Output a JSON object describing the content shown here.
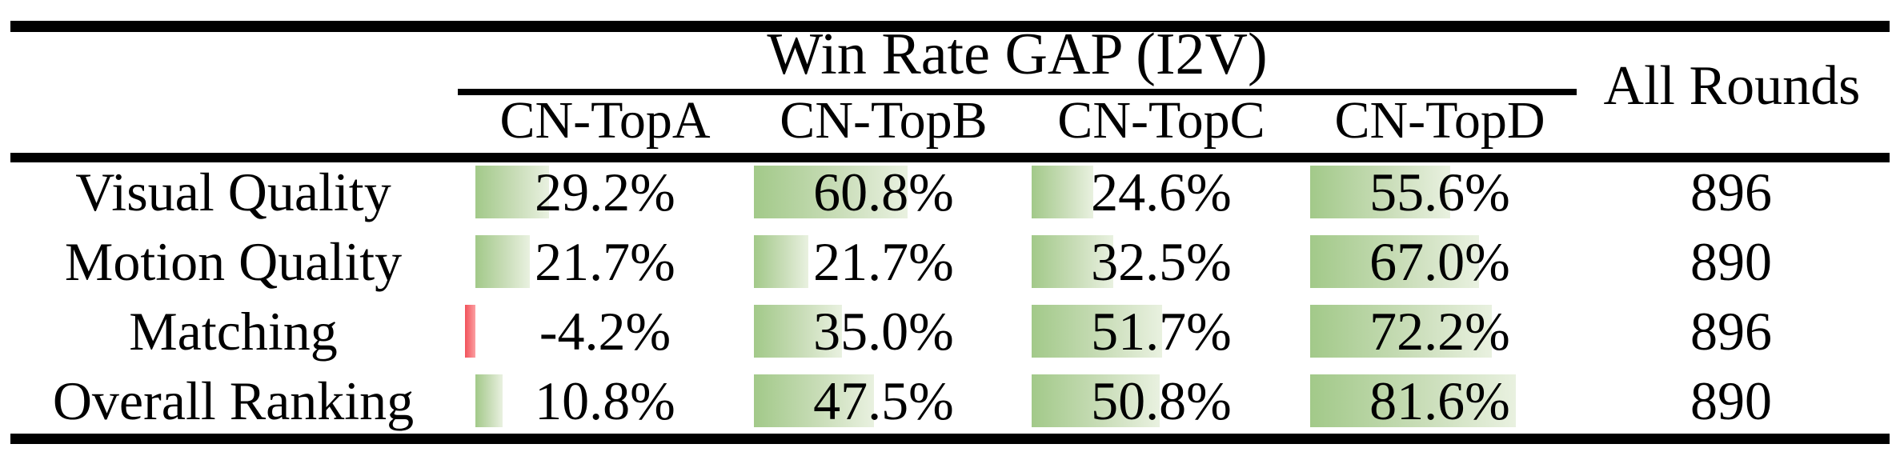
{
  "table": {
    "group_header": "Win Rate GAP (I2V)",
    "all_rounds_header": "All Rounds",
    "columns": [
      "CN-TopA",
      "CN-TopB",
      "CN-TopC",
      "CN-TopD"
    ],
    "rows": [
      {
        "label": "Visual Quality",
        "values": [
          29.2,
          60.8,
          24.6,
          55.6
        ],
        "display": [
          "29.2%",
          "60.8%",
          "24.6%",
          "55.6%"
        ],
        "all_rounds": "896"
      },
      {
        "label": "Motion Quality",
        "values": [
          21.7,
          21.7,
          32.5,
          67.0
        ],
        "display": [
          "21.7%",
          "21.7%",
          "32.5%",
          "67.0%"
        ],
        "all_rounds": "890"
      },
      {
        "label": "Matching",
        "values": [
          -4.2,
          35.0,
          51.7,
          72.2
        ],
        "display": [
          "-4.2%",
          "35.0%",
          "51.7%",
          "72.2%"
        ],
        "all_rounds": "896"
      },
      {
        "label": "Overall Ranking",
        "values": [
          10.8,
          47.5,
          50.8,
          81.6
        ],
        "display": [
          "10.8%",
          "47.5%",
          "50.8%",
          "81.6%"
        ],
        "all_rounds": "890"
      }
    ],
    "colors": {
      "positive_bar_start": "#a2c989",
      "positive_bar_end": "#e9f1e0",
      "negative_bar_start": "#f2525a",
      "negative_bar_end": "#fb9fa2",
      "rule_color": "#000000",
      "text_color": "#000000"
    }
  },
  "chart_data": {
    "type": "table",
    "title": "Win Rate GAP (I2V)",
    "categories": [
      "Visual Quality",
      "Motion Quality",
      "Matching",
      "Overall Ranking"
    ],
    "series": [
      {
        "name": "CN-TopA",
        "values": [
          29.2,
          21.7,
          -4.2,
          10.8
        ]
      },
      {
        "name": "CN-TopB",
        "values": [
          60.8,
          21.7,
          35.0,
          47.5
        ]
      },
      {
        "name": "CN-TopC",
        "values": [
          24.6,
          32.5,
          51.7,
          50.8
        ]
      },
      {
        "name": "CN-TopD",
        "values": [
          55.6,
          67.0,
          72.2,
          81.6
        ]
      }
    ],
    "all_rounds": [
      896,
      890,
      896,
      890
    ],
    "value_unit": "%",
    "bars": "in-cell gradient data bars, green positive / red negative"
  }
}
